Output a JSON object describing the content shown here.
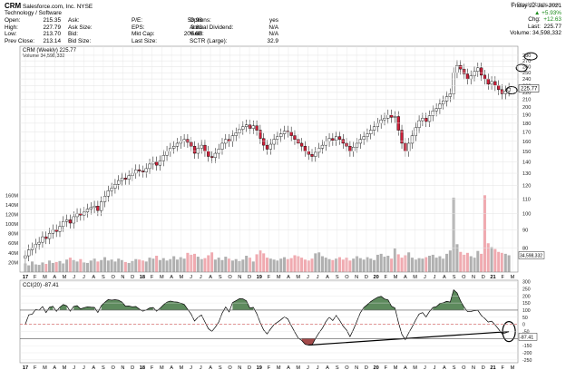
{
  "header": {
    "symbol": "CRM",
    "company": "Salesforce.com, Inc.",
    "exchange": "NYSE",
    "sector": "Technology / Software",
    "col1": [
      [
        "Open:",
        "215.35"
      ],
      [
        "High:",
        "227.79"
      ],
      [
        "Low:",
        "213.70"
      ],
      [
        "Prev Close:",
        "213.14"
      ]
    ],
    "col2": [
      [
        "Ask:",
        ""
      ],
      [
        "Ask Size:",
        ""
      ],
      [
        "Bid:",
        ""
      ],
      [
        "Bid Size:",
        ""
      ]
    ],
    "col3": [
      [
        "P/E:",
        "58.98"
      ],
      [
        "EPS:",
        "3.83"
      ],
      [
        "Mkt Cap:",
        "206.6B"
      ],
      [
        "Last Size:",
        ""
      ]
    ],
    "col4": [
      [
        "Options:",
        "yes"
      ],
      [
        "Annual Dividend:",
        "N/A"
      ],
      [
        "Yield:",
        "N/A"
      ],
      [
        "SCTR (Large):",
        "32.9"
      ]
    ],
    "date": "Friday 22-Jan-2021",
    "pct_change": "+5.93%",
    "chg_label": "Chg:",
    "chg": "+12.63",
    "last_label": "Last:",
    "last": "225.77",
    "vol_label": "Volume:",
    "volume": "34,598,332",
    "watermark": "© StockCharts.com"
  },
  "chart_data": [
    {
      "type": "candlestick",
      "legend": "CRM (Weekly) 225.77",
      "volume_legend": "Volume 34,598,332",
      "last_price_tag": "225.77",
      "y_ticks": [
        80,
        90,
        100,
        110,
        120,
        130,
        140,
        150,
        160,
        170,
        180,
        190,
        200,
        210,
        220,
        230,
        240,
        250,
        260,
        270,
        280
      ],
      "volume_ticks": [
        "20M",
        "40M",
        "60M",
        "80M",
        "100M",
        "120M",
        "140M",
        "160M"
      ],
      "volume_last_tag": "34,598,332",
      "x_ticks": [
        "17",
        "F",
        "M",
        "A",
        "M",
        "J",
        "J",
        "A",
        "S",
        "O",
        "N",
        "D",
        "18",
        "F",
        "M",
        "A",
        "M",
        "J",
        "J",
        "A",
        "S",
        "O",
        "N",
        "D",
        "19",
        "F",
        "M",
        "A",
        "M",
        "J",
        "J",
        "A",
        "S",
        "O",
        "N",
        "D",
        "20",
        "F",
        "M",
        "A",
        "M",
        "J",
        "J",
        "A",
        "S",
        "O",
        "N",
        "D",
        "21",
        "F",
        "M"
      ],
      "closes": [
        76,
        79,
        80,
        82,
        83,
        86,
        85,
        88,
        90,
        89,
        92,
        95,
        96,
        94,
        98,
        100,
        99,
        101,
        103,
        104,
        105,
        102,
        108,
        112,
        116,
        118,
        121,
        124,
        126,
        125,
        128,
        130,
        133,
        132,
        131,
        134,
        138,
        140,
        137,
        141,
        146,
        150,
        153,
        155,
        158,
        160,
        162,
        159,
        155,
        148,
        153,
        156,
        150,
        145,
        144,
        148,
        152,
        158,
        162,
        160,
        166,
        169,
        173,
        176,
        178,
        174,
        177,
        172,
        163,
        156,
        152,
        157,
        162,
        165,
        168,
        171,
        170,
        166,
        162,
        158,
        155,
        150,
        147,
        145,
        149,
        153,
        156,
        160,
        163,
        161,
        165,
        162,
        158,
        155,
        150,
        154,
        158,
        162,
        165,
        168,
        172,
        176,
        180,
        184,
        186,
        190,
        187,
        188,
        172,
        158,
        150,
        158,
        166,
        175,
        183,
        186,
        182,
        189,
        195,
        198,
        204,
        208,
        214,
        218,
        250,
        262,
        256,
        248,
        240,
        245,
        252,
        258,
        246,
        240,
        232,
        236,
        230,
        224,
        218,
        222,
        226
      ],
      "volume_mm": [
        18,
        14,
        22,
        16,
        15,
        20,
        17,
        24,
        19,
        21,
        23,
        18,
        26,
        30,
        25,
        22,
        27,
        20,
        19,
        24,
        28,
        22,
        25,
        31,
        24,
        26,
        22,
        28,
        25,
        21,
        19,
        23,
        27,
        26,
        24,
        22,
        30,
        28,
        34,
        25,
        29,
        24,
        27,
        33,
        26,
        31,
        28,
        40,
        36,
        38,
        32,
        27,
        29,
        35,
        41,
        26,
        30,
        25,
        32,
        28,
        24,
        27,
        23,
        26,
        34,
        30,
        22,
        37,
        45,
        39,
        30,
        28,
        26,
        24,
        28,
        31,
        27,
        29,
        35,
        33,
        30,
        26,
        24,
        28,
        39,
        41,
        33,
        30,
        27,
        25,
        28,
        31,
        26,
        30,
        24,
        28,
        33,
        29,
        26,
        31,
        28,
        25,
        36,
        38,
        32,
        34,
        28,
        49,
        37,
        30,
        35,
        41,
        30,
        26,
        29,
        28,
        31,
        34,
        36,
        30,
        33,
        28,
        38,
        45,
        155,
        58,
        42,
        36,
        40,
        33,
        30,
        44,
        38,
        160,
        60,
        52,
        48,
        42,
        40,
        38,
        35
      ]
    },
    {
      "type": "line",
      "legend": "CCI(20) -87.41",
      "name": "CCI(20)",
      "last_value_tag": "-87.41",
      "y_ticks": [
        -250,
        -200,
        -150,
        -100,
        -50,
        0,
        50,
        100,
        150,
        200,
        250,
        300
      ],
      "reference_lines": [
        100,
        -100
      ]
    }
  ],
  "colors": {
    "up_fill": "#ffffff",
    "down_fill": "#cc1f38",
    "volume_up": "#b0b0b0",
    "volume_down": "#f0aab0",
    "cci_fill_pos": "#5d8a5d",
    "cci_fill_neg": "#a34a4a",
    "ref_line": "#cc3333",
    "grid": "#e3e3e3"
  }
}
